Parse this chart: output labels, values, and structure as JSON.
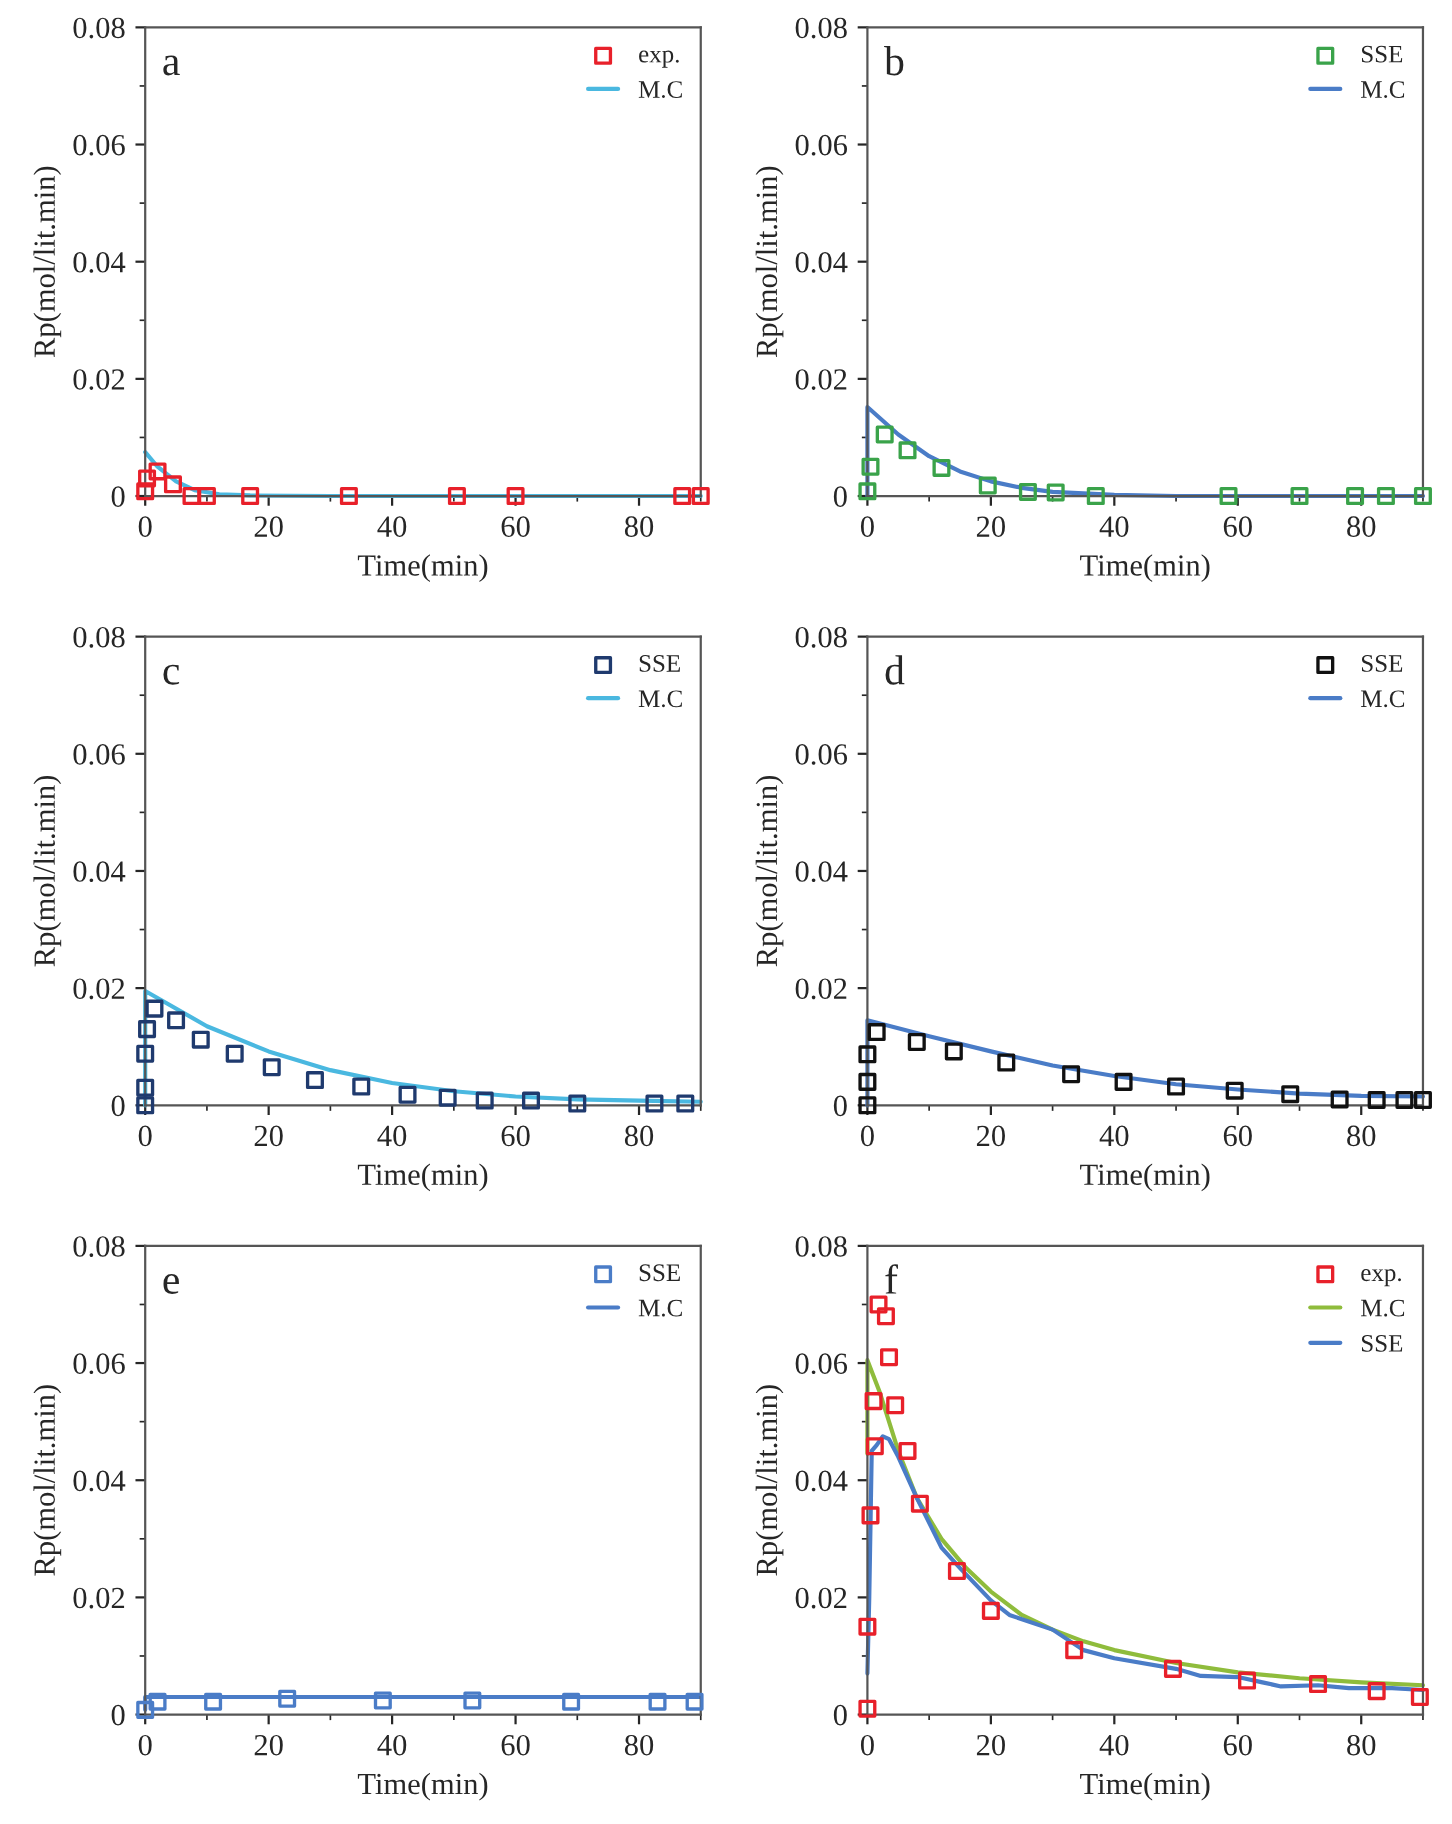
{
  "chart_data": [
    {
      "type": "line",
      "annotations": [
        "a"
      ],
      "xlabel": "Time(min)",
      "ylabel": "Rp(mol/lit.min)",
      "xlim": [
        0,
        90
      ],
      "xticks": [
        0,
        20,
        40,
        60,
        80
      ],
      "ylim": [
        0,
        0.08
      ],
      "yticks": [
        0,
        0.02,
        0.04,
        0.06,
        0.08
      ],
      "legend": "top right",
      "grid": false,
      "series": [
        {
          "name": "exp.",
          "type": "scatter",
          "marker": "square",
          "color": "#e8202a",
          "x": [
            0,
            0.3,
            2,
            4.5,
            7.5,
            10,
            17,
            33,
            50.5,
            60,
            87,
            90
          ],
          "values": [
            0.0008,
            0.003,
            0.0042,
            0.002,
            0,
            0,
            0,
            0,
            0,
            0,
            0,
            0
          ]
        },
        {
          "name": "M.C",
          "color": "#4ab8e0",
          "x": [
            0,
            2,
            5,
            8,
            12,
            17,
            30,
            90
          ],
          "values": [
            0.0075,
            0.005,
            0.0025,
            0.001,
            0.0003,
            0.0001,
            0,
            0
          ]
        }
      ]
    },
    {
      "type": "line",
      "annotations": [
        "b"
      ],
      "xlabel": "Time(min)",
      "ylabel": "Rp(mol/lit.min)",
      "xlim": [
        0,
        90
      ],
      "xticks": [
        0,
        20,
        40,
        60,
        80
      ],
      "ylim": [
        0,
        0.08
      ],
      "yticks": [
        0,
        0.02,
        0.04,
        0.06,
        0.08
      ],
      "legend": "top right",
      "grid": false,
      "series": [
        {
          "name": "SSE",
          "type": "scatter",
          "marker": "square",
          "color": "#3aa34a",
          "x": [
            0,
            0.5,
            2.8,
            6.5,
            12,
            19.5,
            26,
            30.5,
            37,
            58.5,
            70,
            79,
            84,
            90
          ],
          "values": [
            0.0008,
            0.005,
            0.0105,
            0.0078,
            0.0048,
            0.0018,
            0.0007,
            0.0006,
            0,
            0,
            0,
            0,
            0,
            0
          ]
        },
        {
          "name": "M.C",
          "color": "#4a7cc7",
          "x": [
            0,
            0,
            5,
            10,
            15,
            20,
            25,
            30,
            40,
            50,
            90
          ],
          "values": [
            0,
            0.0152,
            0.0105,
            0.0068,
            0.0042,
            0.0025,
            0.0014,
            0.0007,
            0.0002,
            0,
            0
          ]
        }
      ]
    },
    {
      "type": "line",
      "annotations": [
        "c"
      ],
      "xlabel": "Time(min)",
      "ylabel": "Rp(mol/lit.min)",
      "xlim": [
        0,
        90
      ],
      "xticks": [
        0,
        20,
        40,
        60,
        80
      ],
      "ylim": [
        0,
        0.08
      ],
      "yticks": [
        0,
        0.02,
        0.04,
        0.06,
        0.08
      ],
      "legend": "top right",
      "grid": false,
      "series": [
        {
          "name": "SSE",
          "type": "scatter",
          "marker": "square",
          "color": "#1f3a6e",
          "x": [
            0,
            0,
            0,
            0.3,
            1.5,
            5,
            9,
            14.5,
            20.5,
            27.5,
            35,
            42.5,
            49,
            55,
            62.5,
            70,
            82.5,
            87.5
          ],
          "values": [
            0,
            0.003,
            0.0088,
            0.013,
            0.0165,
            0.0145,
            0.0112,
            0.0088,
            0.0065,
            0.0043,
            0.0032,
            0.0018,
            0.0013,
            0.0008,
            0.0008,
            0.0003,
            0.0003,
            0.0003
          ]
        },
        {
          "name": "M.C",
          "color": "#4ab8e0",
          "x": [
            0,
            0,
            10,
            20,
            30,
            40,
            50,
            60,
            70,
            80,
            90
          ],
          "values": [
            0,
            0.0195,
            0.0135,
            0.0092,
            0.006,
            0.0038,
            0.0024,
            0.0015,
            0.001,
            0.0008,
            0.0006
          ]
        }
      ]
    },
    {
      "type": "line",
      "annotations": [
        "d"
      ],
      "xlabel": "Time(min)",
      "ylabel": "Rp(mol/lit.min)",
      "xlim": [
        0,
        90
      ],
      "xticks": [
        0,
        20,
        40,
        60,
        80
      ],
      "ylim": [
        0,
        0.08
      ],
      "yticks": [
        0,
        0.02,
        0.04,
        0.06,
        0.08
      ],
      "legend": "top right",
      "grid": false,
      "series": [
        {
          "name": "SSE",
          "type": "scatter",
          "marker": "square",
          "color": "#111111",
          "x": [
            0,
            0,
            0,
            1.5,
            8,
            14,
            22.5,
            33,
            41.5,
            50,
            59.5,
            68.5,
            76.5,
            82.5,
            87,
            90
          ],
          "values": [
            0,
            0.004,
            0.0087,
            0.0125,
            0.0108,
            0.0092,
            0.0073,
            0.0053,
            0.004,
            0.0032,
            0.0025,
            0.0019,
            0.001,
            0.0009,
            0.0009,
            0.0009
          ]
        },
        {
          "name": "M.C",
          "color": "#4a7cc7",
          "x": [
            0,
            0,
            10,
            20,
            30,
            40,
            50,
            60,
            70,
            80,
            90
          ],
          "values": [
            0,
            0.0145,
            0.0118,
            0.0092,
            0.0068,
            0.005,
            0.0036,
            0.0027,
            0.002,
            0.0016,
            0.0015
          ]
        }
      ]
    },
    {
      "type": "line",
      "annotations": [
        "e"
      ],
      "xlabel": "Time(min)",
      "ylabel": "Rp(mol/lit.min)",
      "xlim": [
        0,
        90
      ],
      "xticks": [
        0,
        20,
        40,
        60,
        80
      ],
      "ylim": [
        0,
        0.08
      ],
      "yticks": [
        0,
        0.02,
        0.04,
        0.06,
        0.08
      ],
      "legend": "top right",
      "grid": false,
      "series": [
        {
          "name": "SSE",
          "type": "scatter",
          "marker": "square",
          "color": "#4a7cc7",
          "x": [
            0,
            2,
            11,
            23,
            38.5,
            53,
            69,
            83,
            89
          ],
          "values": [
            0.0008,
            0.0022,
            0.0022,
            0.0027,
            0.0024,
            0.0024,
            0.0022,
            0.0022,
            0.0022
          ]
        },
        {
          "name": "M.C",
          "color": "#4a7cc7",
          "x": [
            0,
            0,
            90
          ],
          "values": [
            0.0008,
            0.003,
            0.003
          ]
        }
      ]
    },
    {
      "type": "line",
      "annotations": [
        "f"
      ],
      "xlabel": "Time(min)",
      "ylabel": "Rp(mol/lit.min)",
      "xlim": [
        0,
        90
      ],
      "xticks": [
        0,
        20,
        40,
        60,
        80
      ],
      "ylim": [
        0,
        0.08
      ],
      "yticks": [
        0,
        0.02,
        0.04,
        0.06,
        0.08
      ],
      "legend": "top right",
      "grid": false,
      "series": [
        {
          "name": "exp.",
          "type": "scatter",
          "marker": "square",
          "color": "#e8202a",
          "x": [
            0,
            0,
            0.5,
            1,
            1.2,
            1.8,
            3,
            3.5,
            4.5,
            6.5,
            8.5,
            14.5,
            20,
            33.5,
            49.5,
            61.5,
            73,
            82.5,
            89.5
          ],
          "values": [
            0.001,
            0.015,
            0.034,
            0.0535,
            0.0458,
            0.07,
            0.068,
            0.061,
            0.0528,
            0.045,
            0.036,
            0.0245,
            0.0177,
            0.011,
            0.0078,
            0.0058,
            0.0052,
            0.004,
            0.003
          ]
        },
        {
          "name": "M.C",
          "color": "#8fbc3c",
          "x": [
            0,
            0,
            2,
            5,
            8,
            12,
            16,
            20,
            25,
            30,
            35,
            40,
            50,
            60,
            70,
            80,
            90
          ],
          "values": [
            0.0445,
            0.0605,
            0.055,
            0.045,
            0.037,
            0.03,
            0.025,
            0.021,
            0.017,
            0.0145,
            0.0125,
            0.011,
            0.0088,
            0.0072,
            0.0062,
            0.0055,
            0.005
          ]
        },
        {
          "name": "SSE",
          "color": "#4a7cc7",
          "x": [
            0,
            0.3,
            0.7,
            1.5,
            2.5,
            3.5,
            5,
            8,
            12,
            15,
            20,
            23,
            30,
            35,
            40,
            50,
            54,
            60,
            64,
            67,
            73,
            78,
            85,
            90
          ],
          "values": [
            0.007,
            0.02,
            0.045,
            0.046,
            0.0475,
            0.047,
            0.044,
            0.037,
            0.0285,
            0.025,
            0.0195,
            0.017,
            0.0145,
            0.011,
            0.0096,
            0.0078,
            0.0066,
            0.0064,
            0.0055,
            0.0048,
            0.005,
            0.0045,
            0.0045,
            0.0042
          ]
        }
      ]
    }
  ]
}
